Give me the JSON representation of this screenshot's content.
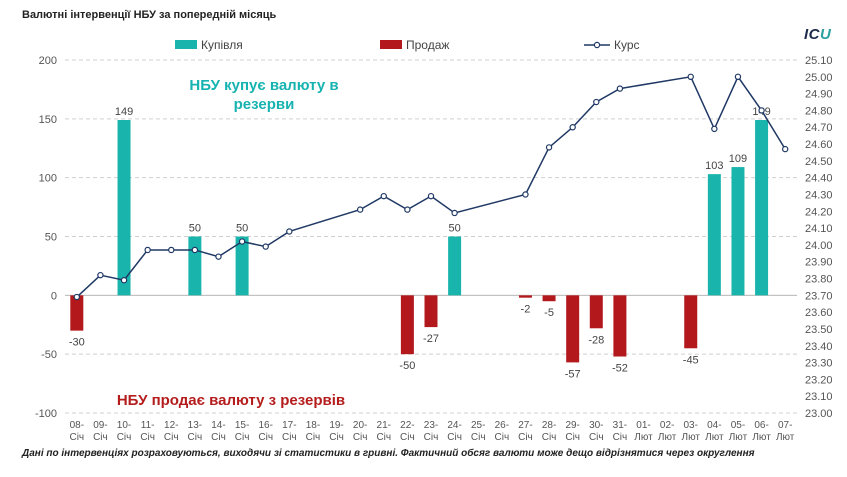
{
  "title": "Валютні інтервенції НБУ  за попередній місяць",
  "logo": "ICU",
  "footnote": "Дані по інтервенціях розраховуються, виходячи зі статистики в гривні. Фактичний обсяг валюти може дещо відрізнятися через округлення",
  "colors": {
    "buy": "#19b5ad",
    "sell": "#b3191c",
    "rate": "#1f3864"
  },
  "chart_data": {
    "type": "bar+line",
    "title": "Валютні інтервенції НБУ  за попередній місяць",
    "categories": [
      "08-Січ",
      "09-Січ",
      "10-Січ",
      "11-Січ",
      "12-Січ",
      "13-Січ",
      "14-Січ",
      "15-Січ",
      "16-Січ",
      "17-Січ",
      "18-Січ",
      "19-Січ",
      "20-Січ",
      "21-Січ",
      "22-Січ",
      "23-Січ",
      "24-Січ",
      "25-Січ",
      "26-Січ",
      "27-Січ",
      "28-Січ",
      "29-Січ",
      "30-Січ",
      "31-Січ",
      "01-Лют",
      "02-Лют",
      "03-Лют",
      "04-Лют",
      "05-Лют",
      "06-Лют",
      "07-Лют"
    ],
    "series": [
      {
        "name": "Купівля",
        "type": "bar",
        "axis": "left",
        "values": [
          null,
          null,
          149,
          null,
          null,
          50,
          null,
          50,
          null,
          null,
          null,
          null,
          null,
          null,
          null,
          null,
          50,
          null,
          null,
          null,
          null,
          null,
          null,
          null,
          null,
          null,
          null,
          103,
          109,
          149,
          null
        ]
      },
      {
        "name": "Продаж",
        "type": "bar",
        "axis": "left",
        "values": [
          -30,
          null,
          null,
          null,
          null,
          null,
          null,
          null,
          null,
          null,
          null,
          null,
          null,
          null,
          -50,
          -27,
          null,
          null,
          null,
          -2,
          -5,
          -57,
          -28,
          -52,
          null,
          null,
          -45,
          null,
          null,
          null,
          null
        ]
      },
      {
        "name": "Курс",
        "type": "line",
        "axis": "right",
        "values": [
          23.69,
          23.82,
          23.79,
          23.97,
          23.97,
          23.97,
          23.93,
          24.02,
          23.99,
          24.08,
          null,
          null,
          24.21,
          24.29,
          24.21,
          24.29,
          24.19,
          null,
          null,
          24.3,
          24.58,
          24.7,
          24.85,
          24.93,
          null,
          null,
          25.0,
          24.69,
          25.0,
          24.8,
          24.57
        ]
      }
    ],
    "y_left": {
      "ylim": [
        -100,
        200
      ],
      "ticks": [
        -100,
        -50,
        0,
        50,
        100,
        150,
        200
      ]
    },
    "y_right": {
      "ylim": [
        23.0,
        25.1
      ],
      "ticks": [
        "23.00",
        "23.10",
        "23.20",
        "23.30",
        "23.40",
        "23.50",
        "23.60",
        "23.70",
        "23.80",
        "23.90",
        "24.00",
        "24.10",
        "24.20",
        "24.30",
        "24.40",
        "24.50",
        "24.60",
        "24.70",
        "24.80",
        "24.90",
        "25.00",
        "25.10"
      ]
    },
    "legend": [
      "Купівля",
      "Продаж",
      "Курс"
    ],
    "legend_position": "top",
    "annotations": {
      "buy": "НБУ купує валюту в резерви",
      "sell": "НБУ продає валюту з резервів"
    },
    "grid": true
  }
}
